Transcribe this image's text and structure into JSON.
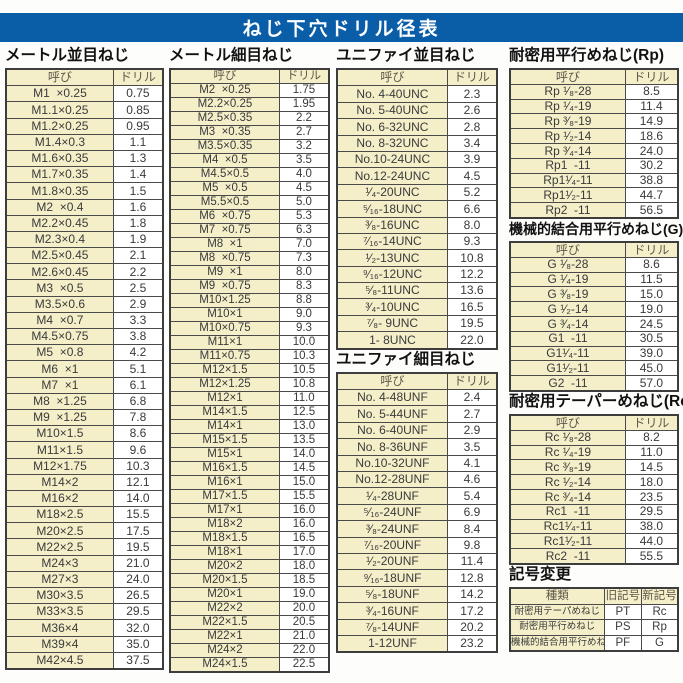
{
  "page_title": "ねじ下穴ドリル径表",
  "colors": {
    "header_bar": "#0a5ea8",
    "cell_cream": "#f4efc9",
    "border": "#4a4a4a"
  },
  "sections": {
    "metric_coarse": {
      "title": "メートル並目ねじ",
      "col_headers": [
        "呼び",
        "ドリル"
      ],
      "rows": [
        [
          "M1  ×0.25",
          "0.75"
        ],
        [
          "M1.1×0.25",
          "0.85"
        ],
        [
          "M1.2×0.25",
          "0.95"
        ],
        [
          "M1.4×0.3",
          "1.1"
        ],
        [
          "M1.6×0.35",
          "1.3"
        ],
        [
          "M1.7×0.35",
          "1.4"
        ],
        [
          "M1.8×0.35",
          "1.5"
        ],
        [
          "M2  ×0.4",
          "1.6"
        ],
        [
          "M2.2×0.45",
          "1.8"
        ],
        [
          "M2.3×0.4",
          "1.9"
        ],
        [
          "M2.5×0.45",
          "2.1"
        ],
        [
          "M2.6×0.45",
          "2.2"
        ],
        [
          "M3  ×0.5",
          "2.5"
        ],
        [
          "M3.5×0.6",
          "2.9"
        ],
        [
          "M4  ×0.7",
          "3.3"
        ],
        [
          "M4.5×0.75",
          "3.8"
        ],
        [
          "M5  ×0.8",
          "4.2"
        ],
        [
          "M6  ×1",
          "5.1"
        ],
        [
          "M7  ×1",
          "6.1"
        ],
        [
          "M8  ×1.25",
          "6.8"
        ],
        [
          "M9  ×1.25",
          "7.8"
        ],
        [
          "M10×1.5",
          "8.6"
        ],
        [
          "M11×1.5",
          "9.6"
        ],
        [
          "M12×1.75",
          "10.3"
        ],
        [
          "M14×2",
          "12.1"
        ],
        [
          "M16×2",
          "14.0"
        ],
        [
          "M18×2.5",
          "15.5"
        ],
        [
          "M20×2.5",
          "17.5"
        ],
        [
          "M22×2.5",
          "19.5"
        ],
        [
          "M24×3",
          "21.0"
        ],
        [
          "M27×3",
          "24.0"
        ],
        [
          "M30×3.5",
          "26.5"
        ],
        [
          "M33×3.5",
          "29.5"
        ],
        [
          "M36×4",
          "32.0"
        ],
        [
          "M39×4",
          "35.0"
        ],
        [
          "M42×4.5",
          "37.5"
        ]
      ]
    },
    "metric_fine": {
      "title": "メートル細目ねじ",
      "col_headers": [
        "呼び",
        "ドリル"
      ],
      "rows": [
        [
          "M2  ×0.25",
          "1.75"
        ],
        [
          "M2.2×0.25",
          "1.95"
        ],
        [
          "M2.5×0.35",
          "2.2"
        ],
        [
          "M3  ×0.35",
          "2.7"
        ],
        [
          "M3.5×0.35",
          "3.2"
        ],
        [
          "M4  ×0.5",
          "3.5"
        ],
        [
          "M4.5×0.5",
          "4.0"
        ],
        [
          "M5  ×0.5",
          "4.5"
        ],
        [
          "M5.5×0.5",
          "5.0"
        ],
        [
          "M6  ×0.75",
          "5.3"
        ],
        [
          "M7  ×0.75",
          "6.3"
        ],
        [
          "M8  ×1",
          "7.0"
        ],
        [
          "M8  ×0.75",
          "7.3"
        ],
        [
          "M9  ×1",
          "8.0"
        ],
        [
          "M9  ×0.75",
          "8.3"
        ],
        [
          "M10×1.25",
          "8.8"
        ],
        [
          "M10×1",
          "9.0"
        ],
        [
          "M10×0.75",
          "9.3"
        ],
        [
          "M11×1",
          "10.0"
        ],
        [
          "M11×0.75",
          "10.3"
        ],
        [
          "M12×1.5",
          "10.5"
        ],
        [
          "M12×1.25",
          "10.8"
        ],
        [
          "M12×1",
          "11.0"
        ],
        [
          "M14×1.5",
          "12.5"
        ],
        [
          "M14×1",
          "13.0"
        ],
        [
          "M15×1.5",
          "13.5"
        ],
        [
          "M15×1",
          "14.0"
        ],
        [
          "M16×1.5",
          "14.5"
        ],
        [
          "M16×1",
          "15.0"
        ],
        [
          "M17×1.5",
          "15.5"
        ],
        [
          "M17×1",
          "16.0"
        ],
        [
          "M18×2",
          "16.0"
        ],
        [
          "M18×1.5",
          "16.5"
        ],
        [
          "M18×1",
          "17.0"
        ],
        [
          "M20×2",
          "18.0"
        ],
        [
          "M20×1.5",
          "18.5"
        ],
        [
          "M20×1",
          "19.0"
        ],
        [
          "M22×2",
          "20.0"
        ],
        [
          "M22×1.5",
          "20.5"
        ],
        [
          "M22×1",
          "21.0"
        ],
        [
          "M24×2",
          "22.0"
        ],
        [
          "M24×1.5",
          "22.5"
        ]
      ]
    },
    "unified_coarse": {
      "title": "ユニファイ並目ねじ",
      "col_headers": [
        "呼び",
        "ドリル"
      ],
      "rows": [
        [
          "No. 4-40UNC",
          "2.3"
        ],
        [
          "No. 5-40UNC",
          "2.6"
        ],
        [
          "No. 6-32UNC",
          "2.8"
        ],
        [
          "No. 8-32UNC",
          "3.4"
        ],
        [
          "No.10-24UNC",
          "3.9"
        ],
        [
          "No.12-24UNC",
          "4.5"
        ],
        [
          "¹⁄₄-20UNC",
          "5.2"
        ],
        [
          "⁵⁄₁₆-18UNC",
          "6.6"
        ],
        [
          "³⁄₈-16UNC",
          "8.0"
        ],
        [
          "⁷⁄₁₆-14UNC",
          "9.3"
        ],
        [
          "¹⁄₂-13UNC",
          "10.8"
        ],
        [
          "⁹⁄₁₆-12UNC",
          "12.2"
        ],
        [
          "⁵⁄₈-11UNC",
          "13.6"
        ],
        [
          "³⁄₄-10UNC",
          "16.5"
        ],
        [
          "⁷⁄₈- 9UNC",
          "19.5"
        ],
        [
          "1- 8UNC",
          "22.0"
        ]
      ]
    },
    "unified_fine": {
      "title": "ユニファイ細目ねじ",
      "col_headers": [
        "呼び",
        "ドリル"
      ],
      "rows": [
        [
          "No. 4-48UNF",
          "2.4"
        ],
        [
          "No. 5-44UNF",
          "2.7"
        ],
        [
          "No. 6-40UNF",
          "2.9"
        ],
        [
          "No. 8-36UNF",
          "3.5"
        ],
        [
          "No.10-32UNF",
          "4.1"
        ],
        [
          "No.12-28UNF",
          "4.6"
        ],
        [
          "¹⁄₄-28UNF",
          "5.4"
        ],
        [
          "⁵⁄₁₆-24UNF",
          "6.9"
        ],
        [
          "³⁄₈-24UNF",
          "8.4"
        ],
        [
          "⁷⁄₁₆-20UNF",
          "9.8"
        ],
        [
          "¹⁄₂-20UNF",
          "11.4"
        ],
        [
          "⁹⁄₁₆-18UNF",
          "12.8"
        ],
        [
          "⁵⁄₈-18UNF",
          "14.2"
        ],
        [
          "³⁄₄-16UNF",
          "17.2"
        ],
        [
          "⁷⁄₈-14UNF",
          "20.2"
        ],
        [
          "1-12UNF",
          "23.2"
        ]
      ]
    },
    "rp": {
      "title": "耐密用平行めねじ(Rp)",
      "col_headers": [
        "呼び",
        "ドリル"
      ],
      "rows": [
        [
          "Rp ¹⁄₈-28",
          "8.5"
        ],
        [
          "Rp ¹⁄₄-19",
          "11.4"
        ],
        [
          "Rp ³⁄₈-19",
          "14.9"
        ],
        [
          "Rp ¹⁄₂-14",
          "18.6"
        ],
        [
          "Rp ³⁄₄-14",
          "24.0"
        ],
        [
          "Rp1  -11",
          "30.2"
        ],
        [
          "Rp1¹⁄₄-11",
          "38.8"
        ],
        [
          "Rp1¹⁄₂-11",
          "44.7"
        ],
        [
          "Rp2  -11",
          "56.5"
        ]
      ]
    },
    "g": {
      "title": "機械的結合用平行めねじ(G)",
      "col_headers": [
        "呼び",
        "ドリル"
      ],
      "rows": [
        [
          "G ¹⁄₈-28",
          "8.6"
        ],
        [
          "G ¹⁄₄-19",
          "11.5"
        ],
        [
          "G ³⁄₈-19",
          "15.0"
        ],
        [
          "G ¹⁄₂-14",
          "19.0"
        ],
        [
          "G ³⁄₄-14",
          "24.5"
        ],
        [
          "G1  -11",
          "30.5"
        ],
        [
          "G1¹⁄₄-11",
          "39.0"
        ],
        [
          "G1¹⁄₂-11",
          "45.0"
        ],
        [
          "G2  -11",
          "57.0"
        ]
      ]
    },
    "rc": {
      "title": "耐密用テーパーめねじ(Rc)",
      "col_headers": [
        "呼び",
        "ドリル"
      ],
      "rows": [
        [
          "Rc ¹⁄₈-28",
          "8.2"
        ],
        [
          "Rc ¹⁄₄-19",
          "11.0"
        ],
        [
          "Rc ³⁄₈-19",
          "14.5"
        ],
        [
          "Rc ¹⁄₂-14",
          "18.0"
        ],
        [
          "Rc ³⁄₄-14",
          "23.5"
        ],
        [
          "Rc1  -11",
          "29.5"
        ],
        [
          "Rc1¹⁄₄-11",
          "38.0"
        ],
        [
          "Rc1¹⁄₂-11",
          "44.0"
        ],
        [
          "Rc2  -11",
          "55.5"
        ]
      ]
    },
    "symbol_change": {
      "title": "記号変更",
      "col_headers": [
        "種類",
        "旧記号",
        "新記号"
      ],
      "rows": [
        [
          "耐密用テーパめねじ",
          "PT",
          "Rc"
        ],
        [
          "耐密用平行めねじ",
          "PS",
          "Rp"
        ],
        [
          "機械的結合用平行めねじ",
          "PF",
          "G"
        ]
      ]
    }
  }
}
